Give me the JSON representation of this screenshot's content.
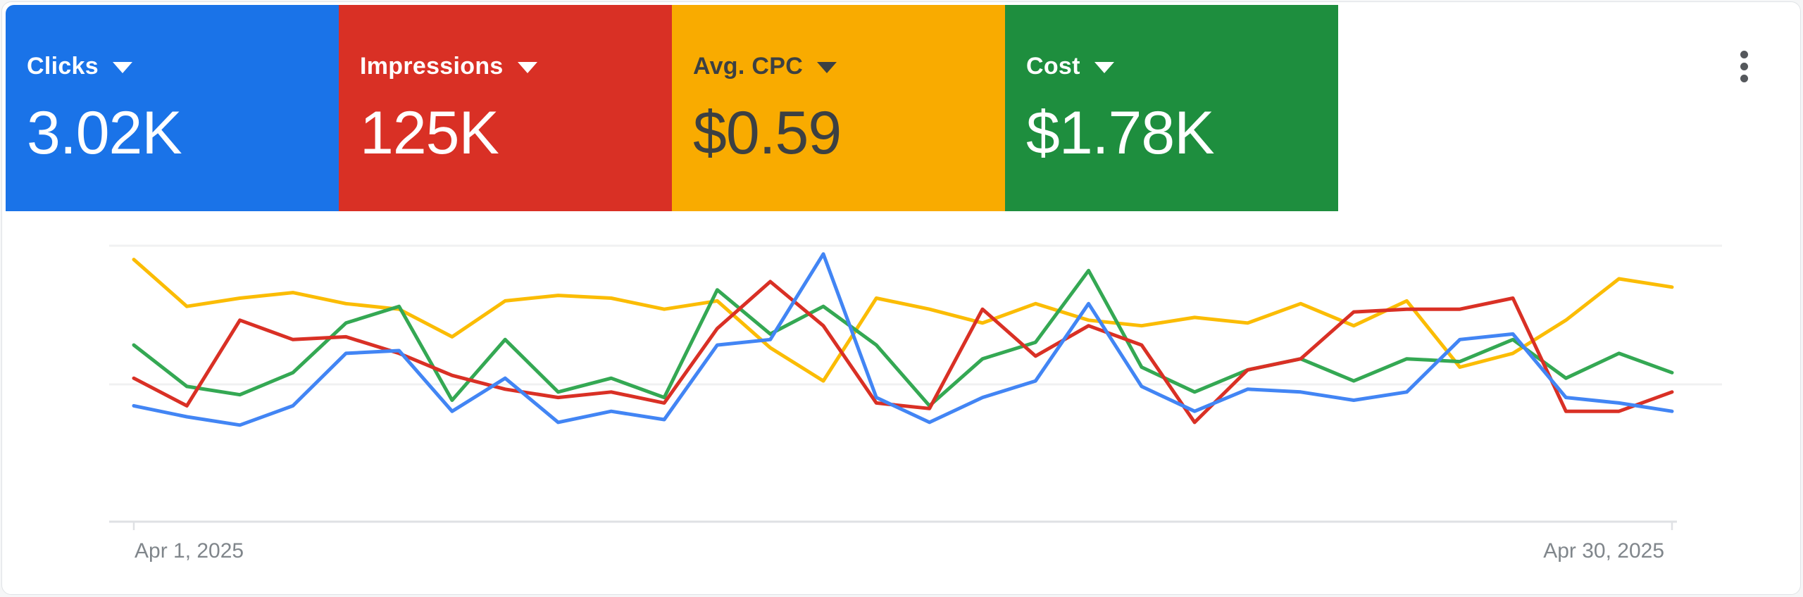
{
  "widget": {
    "kind": "Google Ads overview time-series card"
  },
  "scorecards": [
    {
      "label": "Clicks",
      "value": "3.02K",
      "bg": "#1a73e8",
      "fg": "#ffffff"
    },
    {
      "label": "Impressions",
      "value": "125K",
      "bg": "#d93025",
      "fg": "#ffffff"
    },
    {
      "label": "Avg. CPC",
      "value": "$0.59",
      "bg": "#f9ab00",
      "fg": "#3c4043"
    },
    {
      "label": "Cost",
      "value": "$1.78K",
      "bg": "#1e8e3e",
      "fg": "#ffffff"
    }
  ],
  "icons": {
    "metric_dropdown": "caret-down-icon",
    "overflow_menu": "kebab-vertical-icon"
  },
  "chart_data": {
    "type": "line",
    "title": "",
    "xlabel": "",
    "ylabel": "",
    "legend": "none",
    "grid": "horizontal",
    "y_axis": {
      "visible": false,
      "note": "no y-axis labels; each metric normalized to 0-100 of its own range; gridlines at 0, 50, 100",
      "ylim": [
        0,
        100
      ]
    },
    "x_axis": {
      "start_label": "Apr 1, 2025",
      "end_label": "Apr 30, 2025",
      "num_points": 30
    },
    "series": [
      {
        "name": "Avg. CPC",
        "color": "#fbbc04",
        "values": [
          95,
          78,
          81,
          83,
          79,
          77,
          67,
          80,
          82,
          81,
          77,
          80,
          63,
          51,
          81,
          77,
          72,
          79,
          73,
          71,
          74,
          72,
          79,
          71,
          80,
          56,
          61,
          73,
          88,
          85
        ]
      },
      {
        "name": "Cost",
        "color": "#34a853",
        "values": [
          64,
          49,
          46,
          54,
          72,
          78,
          44,
          66,
          47,
          52,
          45,
          84,
          68,
          78,
          64,
          42,
          59,
          65,
          91,
          56,
          47,
          55,
          59,
          51,
          59,
          58,
          66,
          52,
          61,
          54
        ]
      },
      {
        "name": "Impressions",
        "color": "#d93025",
        "values": [
          52,
          42,
          73,
          66,
          67,
          61,
          53,
          48,
          45,
          47,
          43,
          70,
          87,
          71,
          43,
          41,
          77,
          60,
          71,
          64,
          36,
          55,
          59,
          76,
          77,
          77,
          81,
          40,
          40,
          47
        ]
      },
      {
        "name": "Clicks",
        "color": "#4285f4",
        "values": [
          42,
          38,
          35,
          42,
          61,
          62,
          40,
          52,
          36,
          40,
          37,
          64,
          66,
          97,
          45,
          36,
          45,
          51,
          79,
          49,
          40,
          48,
          47,
          44,
          47,
          66,
          68,
          45,
          43,
          40
        ]
      }
    ]
  }
}
